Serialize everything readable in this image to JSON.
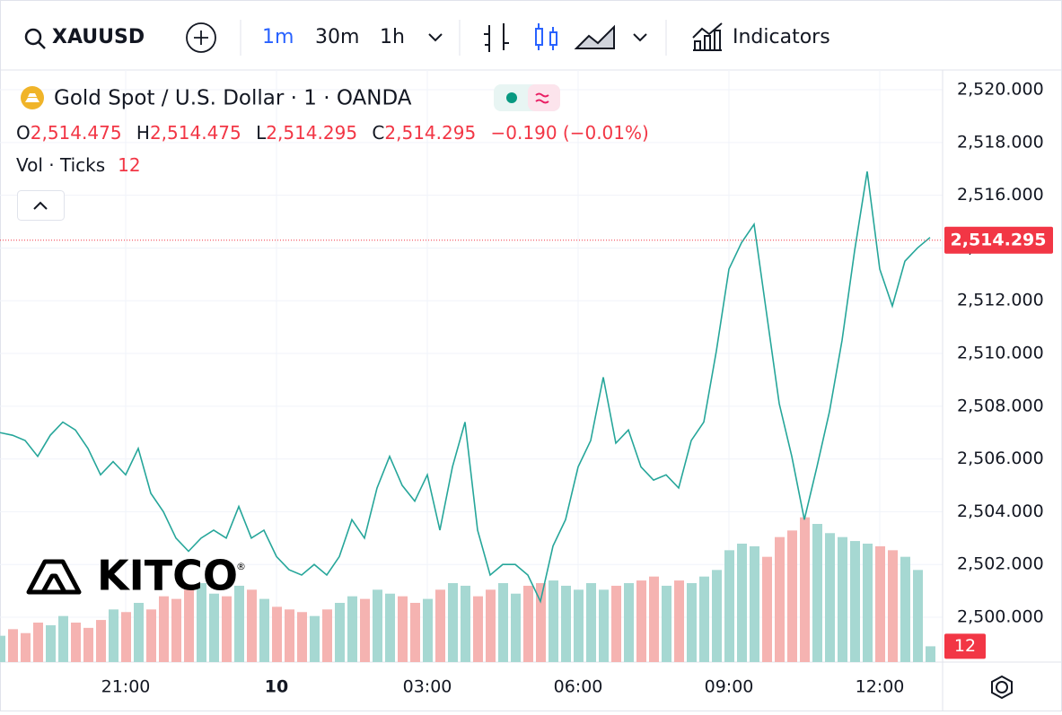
{
  "toolbar": {
    "symbol": "XAUUSD",
    "intervals": [
      "1m",
      "30m",
      "1h"
    ],
    "indicators": "Indicators"
  },
  "legend": {
    "title": "Gold Spot / U.S. Dollar · 1 · OANDA",
    "open_label": "O",
    "open": "2,514.475",
    "high_label": "H",
    "high": "2,514.475",
    "low_label": "L",
    "low": "2,514.295",
    "close_label": "C",
    "close": "2,514.295",
    "change": "−0.190 (−0.01%)",
    "volume_label": "Vol · Ticks"
  },
  "logo": {
    "text": "KITCO",
    "mark": "®"
  },
  "chart_data": {
    "type": "line",
    "categories": [
      null,
      null,
      null,
      null,
      null,
      null,
      null,
      null,
      null,
      null,
      "21:00",
      null,
      null,
      null,
      null,
      null,
      null,
      null,
      null,
      null,
      null,
      null,
      "10",
      null,
      null,
      null,
      null,
      null,
      null,
      null,
      null,
      null,
      null,
      null,
      "03:00",
      null,
      null,
      null,
      null,
      null,
      null,
      null,
      null,
      null,
      null,
      null,
      "06:00",
      null,
      null,
      null,
      null,
      null,
      null,
      null,
      null,
      null,
      null,
      null,
      "09:00",
      null,
      null,
      null,
      null,
      null,
      null,
      null,
      null,
      null,
      null,
      null,
      "12:00",
      null,
      null,
      null,
      null
    ],
    "series": [
      {
        "name": "XAUUSD",
        "color": "#26a69a",
        "values": [
          2507.0,
          2506.9,
          2506.7,
          2506.1,
          2506.9,
          2507.4,
          2507.1,
          2506.4,
          2505.4,
          2505.9,
          2505.4,
          2506.4,
          2504.7,
          2504.0,
          2503.0,
          2502.5,
          2503.0,
          2503.3,
          2503.0,
          2504.2,
          2503.0,
          2503.3,
          2502.3,
          2501.8,
          2501.6,
          2502.0,
          2501.6,
          2502.3,
          2503.7,
          2503.0,
          2504.9,
          2506.1,
          2505.0,
          2504.4,
          2505.4,
          2503.3,
          2505.7,
          2507.4,
          2503.3,
          2501.6,
          2502.0,
          2502.0,
          2501.6,
          2500.6,
          2502.7,
          2503.7,
          2505.7,
          2506.7,
          2509.1,
          2506.6,
          2507.1,
          2505.7,
          2505.2,
          2505.4,
          2504.9,
          2506.7,
          2507.4,
          2510.1,
          2513.2,
          2514.2,
          2514.9,
          2511.5,
          2508.1,
          2506.1,
          2503.7,
          2505.7,
          2507.8,
          2510.5,
          2513.9,
          2516.9,
          2513.2,
          2511.8,
          2513.5,
          2514.0,
          2514.4
        ]
      }
    ],
    "volume": {
      "up_color": "#a6d8d2",
      "down_color": "#f5b3b1",
      "values": [
        20,
        25,
        22,
        30,
        28,
        35,
        30,
        26,
        32,
        40,
        38,
        45,
        40,
        50,
        48,
        55,
        60,
        52,
        50,
        58,
        55,
        48,
        42,
        40,
        38,
        35,
        40,
        45,
        50,
        48,
        55,
        52,
        50,
        45,
        48,
        55,
        60,
        58,
        50,
        55,
        60,
        52,
        58,
        60,
        62,
        58,
        55,
        60,
        55,
        58,
        60,
        62,
        65,
        58,
        62,
        60,
        65,
        70,
        85,
        90,
        88,
        80,
        95,
        100,
        110,
        105,
        98,
        95,
        92,
        90,
        88,
        85,
        80,
        70,
        12
      ]
    },
    "ylim": [
      2498.3,
      2520.75
    ],
    "y2lim": [
      0,
      450
    ],
    "yticks": [
      {
        "value": 2500,
        "label": "2,500.000"
      },
      {
        "value": 2502,
        "label": "2,502.000"
      },
      {
        "value": 2504,
        "label": "2,504.000"
      },
      {
        "value": 2506,
        "label": "2,506.000"
      },
      {
        "value": 2508,
        "label": "2,508.000"
      },
      {
        "value": 2510,
        "label": "2,510.000"
      },
      {
        "value": 2512,
        "label": "2,512.000"
      },
      {
        "value": 2514,
        "label": "2,514.000"
      },
      {
        "value": 2516,
        "label": "2,516.000"
      },
      {
        "value": 2518,
        "label": "2,518.000"
      },
      {
        "value": 2520,
        "label": "2,520.000"
      }
    ],
    "last_price": {
      "value": 2514.295,
      "label": "2,514.295"
    },
    "grid": true
  }
}
